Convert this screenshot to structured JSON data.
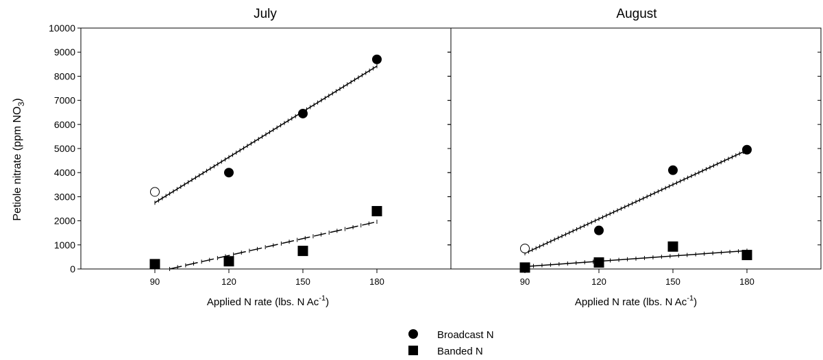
{
  "chart_data": [
    {
      "type": "scatter",
      "title": "July",
      "xlabel": "Applied  N rate  (lbs.  N  Ac",
      "xlabel_sup": "-1",
      "xlabel_end": ")",
      "ylabel": "Petiole nitrate (ppm NO",
      "ylabel_sub": "3",
      "ylabel_end": ")",
      "xlim": [
        60,
        210
      ],
      "ylim": [
        0,
        10000
      ],
      "xticks": [
        "90",
        "120",
        "150",
        "180"
      ],
      "yticks": [
        "0",
        "1000",
        "2000",
        "3000",
        "4000",
        "5000",
        "6000",
        "7000",
        "8000",
        "9000",
        "10000"
      ],
      "series": [
        {
          "name": "Broadcast N",
          "marker": "circle",
          "points": [
            {
              "x": 90,
              "y": 3200,
              "filled": false
            },
            {
              "x": 120,
              "y": 4000,
              "filled": true
            },
            {
              "x": 150,
              "y": 6450,
              "filled": true
            },
            {
              "x": 180,
              "y": 8700,
              "filled": true
            }
          ],
          "fit": {
            "x": [
              90,
              180
            ],
            "y": [
              2750,
              8420
            ]
          }
        },
        {
          "name": "Banded N",
          "marker": "square",
          "points": [
            {
              "x": 90,
              "y": 200,
              "filled": true
            },
            {
              "x": 120,
              "y": 320,
              "filled": true
            },
            {
              "x": 150,
              "y": 750,
              "filled": true
            },
            {
              "x": 180,
              "y": 2400,
              "filled": true
            }
          ],
          "fit": {
            "x": [
              96,
              180
            ],
            "y": [
              0,
              1960
            ]
          }
        }
      ]
    },
    {
      "type": "scatter",
      "title": "August",
      "xlabel": "Applied  N rate  (lbs.  N  Ac",
      "xlabel_sup": "-1",
      "xlabel_end": ")",
      "xlim": [
        60,
        210
      ],
      "ylim": [
        0,
        10000
      ],
      "xticks": [
        "90",
        "120",
        "150",
        "180"
      ],
      "series": [
        {
          "name": "Broadcast N",
          "marker": "circle",
          "points": [
            {
              "x": 90,
              "y": 850,
              "filled": false
            },
            {
              "x": 120,
              "y": 1600,
              "filled": true
            },
            {
              "x": 150,
              "y": 4100,
              "filled": true
            },
            {
              "x": 180,
              "y": 4950,
              "filled": true
            }
          ],
          "fit": {
            "x": [
              90,
              180
            ],
            "y": [
              650,
              4930
            ]
          }
        },
        {
          "name": "Banded N",
          "marker": "square",
          "points": [
            {
              "x": 90,
              "y": 60,
              "filled": true
            },
            {
              "x": 120,
              "y": 270,
              "filled": true
            },
            {
              "x": 150,
              "y": 930,
              "filled": true
            },
            {
              "x": 180,
              "y": 580,
              "filled": true
            }
          ],
          "fit": {
            "x": [
              90,
              180
            ],
            "y": [
              100,
              760
            ]
          }
        }
      ]
    }
  ],
  "legend": {
    "placement": "bottom-center",
    "items": [
      {
        "label": "Broadcast N",
        "marker": "circle"
      },
      {
        "label": "Banded N",
        "marker": "square"
      }
    ]
  }
}
